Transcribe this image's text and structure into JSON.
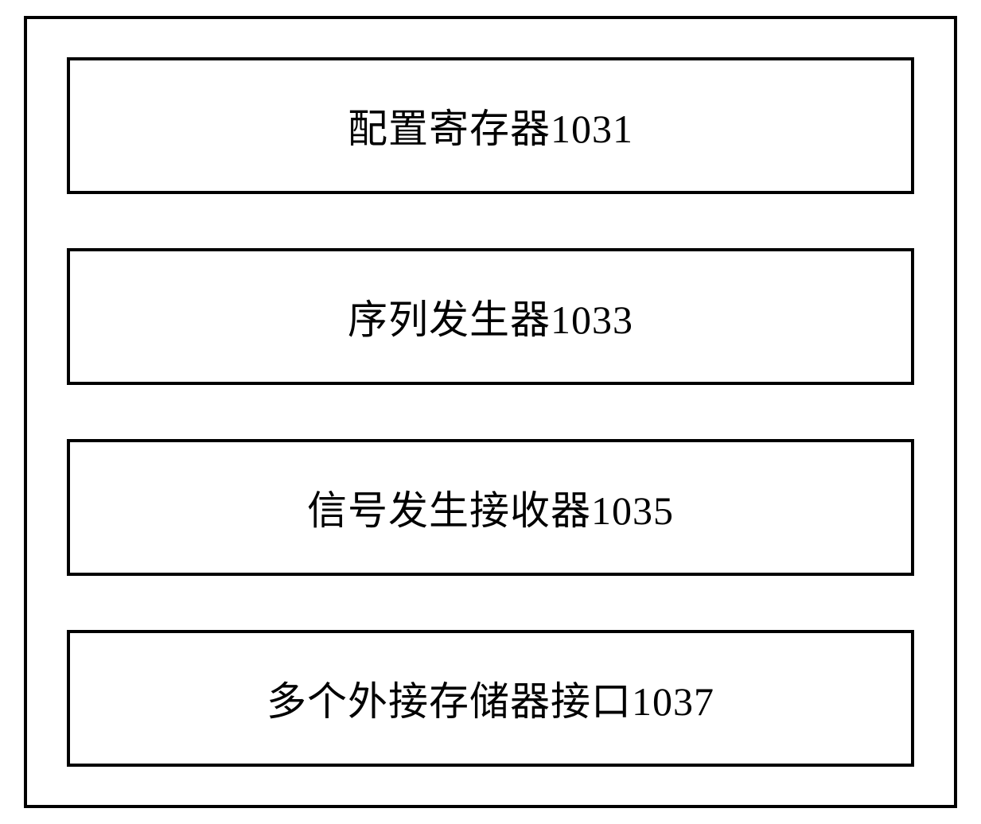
{
  "diagram": {
    "type": "block-diagram",
    "outer_border_color": "#000000",
    "outer_border_width": 4,
    "background_color": "#ffffff",
    "block_border_color": "#000000",
    "block_border_width": 4,
    "block_background_color": "#ffffff",
    "text_color": "#000000",
    "font_size": 50,
    "font_family": "SimSun",
    "blocks": [
      {
        "label": "配置寄存器1031"
      },
      {
        "label": "序列发生器1033"
      },
      {
        "label": "信号发生接收器1035"
      },
      {
        "label": "多个外接存储器接口1037"
      }
    ]
  }
}
